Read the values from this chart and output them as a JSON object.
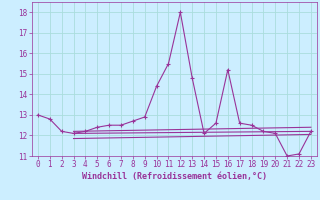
{
  "xlabel": "Windchill (Refroidissement éolien,°C)",
  "background_color": "#cceeff",
  "grid_color": "#aadddd",
  "line_color": "#993399",
  "xlim": [
    -0.5,
    23.5
  ],
  "ylim": [
    11,
    18.5
  ],
  "yticks": [
    11,
    12,
    13,
    14,
    15,
    16,
    17,
    18
  ],
  "xticks": [
    0,
    1,
    2,
    3,
    4,
    5,
    6,
    7,
    8,
    9,
    10,
    11,
    12,
    13,
    14,
    15,
    16,
    17,
    18,
    19,
    20,
    21,
    22,
    23
  ],
  "series": {
    "main": {
      "x": [
        0,
        1,
        2,
        3,
        4,
        5,
        6,
        7,
        8,
        9,
        10,
        11,
        12,
        13,
        14,
        15,
        16,
        17,
        18,
        19,
        20,
        21,
        22,
        23
      ],
      "y": [
        13.0,
        12.8,
        12.2,
        12.1,
        12.2,
        12.4,
        12.5,
        12.5,
        12.7,
        12.9,
        14.4,
        15.5,
        18.0,
        14.8,
        12.1,
        12.6,
        15.2,
        12.6,
        12.5,
        12.2,
        12.1,
        11.0,
        11.1,
        12.2
      ]
    },
    "flat1": {
      "x": [
        3,
        23
      ],
      "y": [
        12.2,
        12.4
      ]
    },
    "flat2": {
      "x": [
        3,
        23
      ],
      "y": [
        12.1,
        12.2
      ]
    },
    "flat3": {
      "x": [
        3,
        23
      ],
      "y": [
        11.85,
        12.05
      ]
    }
  },
  "tick_fontsize": 5.5,
  "xlabel_fontsize": 6.0
}
